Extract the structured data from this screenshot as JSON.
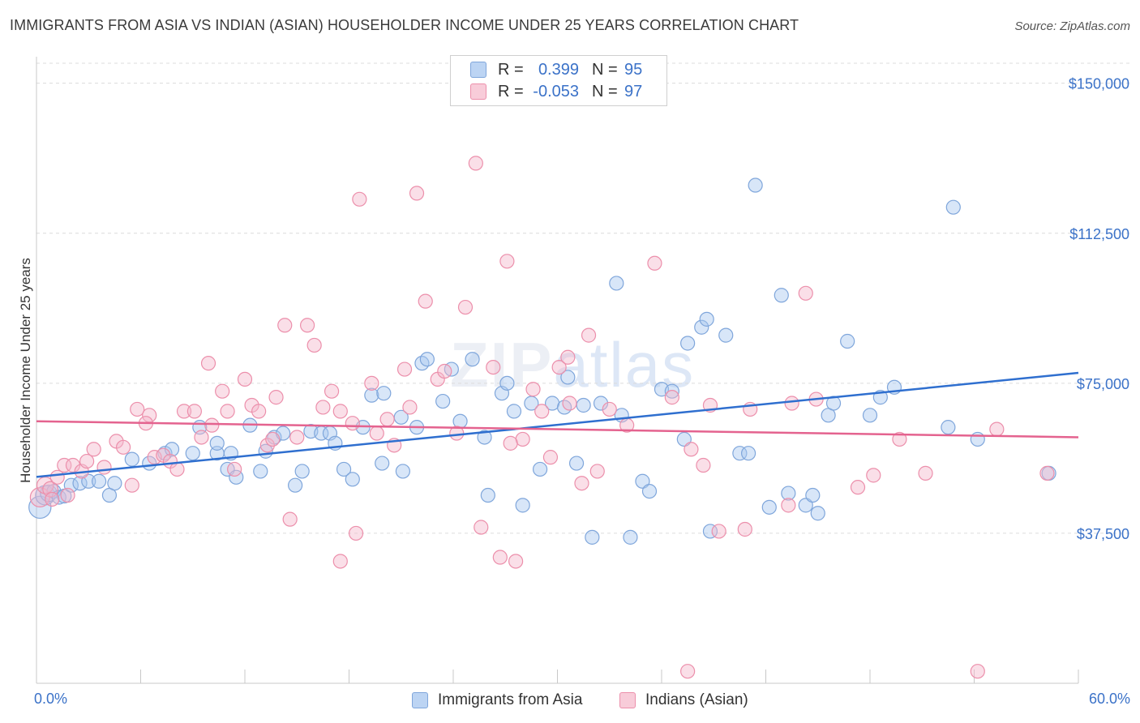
{
  "title": "IMMIGRANTS FROM ASIA VS INDIAN (ASIAN) HOUSEHOLDER INCOME UNDER 25 YEARS CORRELATION CHART",
  "source": "Source: ZipAtlas.com",
  "watermark": {
    "zip": "ZIP",
    "atlas": "atlas"
  },
  "legend": {
    "rows": [
      {
        "r_label": "R =",
        "r_value": "0.399",
        "n_label": "N =",
        "n_value": "95"
      },
      {
        "r_label": "R =",
        "r_value": "-0.053",
        "n_label": "N =",
        "n_value": "97"
      }
    ]
  },
  "colors": {
    "blue_fill": "#a9c7ef",
    "blue_stroke": "#7fa6db",
    "blue_line": "#2f6fcf",
    "pink_fill": "#f5b8cb",
    "pink_stroke": "#ec8fab",
    "pink_line": "#e4638f",
    "axis_text": "#3b72c8",
    "grid": "#dcdcdc"
  },
  "chart_data": {
    "type": "scatter",
    "title": "IMMIGRANTS FROM ASIA VS INDIAN (ASIAN) HOUSEHOLDER INCOME UNDER 25 YEARS CORRELATION CHART",
    "xlabel": "",
    "ylabel": "Householder Income Under 25 years",
    "xlim": [
      0,
      60
    ],
    "ylim": [
      0,
      155000
    ],
    "x_tick_labels": [
      "0.0%",
      "60.0%"
    ],
    "y_ticks": [
      37500,
      75000,
      112500,
      150000
    ],
    "y_tick_labels": [
      "$37,500",
      "$75,000",
      "$112,500",
      "$150,000"
    ],
    "grid": true,
    "legend_position": "top-center",
    "series": [
      {
        "name": "Immigrants from Asia",
        "r": 0.399,
        "n": 95,
        "trend": [
          [
            0,
            51600
          ],
          [
            60,
            77600
          ]
        ],
        "points": [
          [
            0.2,
            44000,
            1.6
          ],
          [
            0.5,
            47000,
            1.4
          ],
          [
            0.7,
            47500,
            1.2
          ],
          [
            1.0,
            48000,
            1.0
          ],
          [
            1.3,
            46500,
            1.0
          ],
          [
            1.6,
            46800,
            1.0
          ],
          [
            2.0,
            49500,
            1.0
          ],
          [
            2.5,
            50000,
            1.0
          ],
          [
            3.0,
            50500,
            1.0
          ],
          [
            3.6,
            50500,
            1.0
          ],
          [
            4.2,
            47000,
            1.0
          ],
          [
            4.5,
            50000,
            1.0
          ],
          [
            5.5,
            56000,
            1.0
          ],
          [
            6.5,
            55000,
            1.0
          ],
          [
            7.4,
            57500,
            1.0
          ],
          [
            7.8,
            58500,
            1.0
          ],
          [
            9.0,
            57500,
            1.0
          ],
          [
            9.4,
            64000,
            1.0
          ],
          [
            10.4,
            57500,
            1.0
          ],
          [
            10.4,
            60000,
            1.0
          ],
          [
            11.0,
            53500,
            1.0
          ],
          [
            11.2,
            57500,
            1.0
          ],
          [
            11.5,
            51500,
            1.0
          ],
          [
            12.3,
            64500,
            1.0
          ],
          [
            12.9,
            53000,
            1.0
          ],
          [
            13.2,
            58000,
            1.0
          ],
          [
            13.7,
            61500,
            1.0
          ],
          [
            14.2,
            62500,
            1.0
          ],
          [
            14.9,
            49500,
            1.0
          ],
          [
            15.3,
            53000,
            1.0
          ],
          [
            15.8,
            63000,
            1.0
          ],
          [
            16.4,
            62500,
            1.0
          ],
          [
            16.9,
            62500,
            1.0
          ],
          [
            17.2,
            60000,
            1.0
          ],
          [
            17.7,
            53500,
            1.0
          ],
          [
            18.2,
            51000,
            1.0
          ],
          [
            18.8,
            64000,
            1.0
          ],
          [
            19.3,
            72000,
            1.0
          ],
          [
            19.9,
            55000,
            1.0
          ],
          [
            20.0,
            72500,
            1.0
          ],
          [
            21.0,
            66500,
            1.0
          ],
          [
            21.1,
            53000,
            1.0
          ],
          [
            21.9,
            64000,
            1.0
          ],
          [
            22.2,
            80000,
            1.0
          ],
          [
            22.5,
            81000,
            1.0
          ],
          [
            23.4,
            70500,
            1.0
          ],
          [
            23.9,
            78500,
            1.0
          ],
          [
            24.4,
            65500,
            1.0
          ],
          [
            25.1,
            81000,
            1.0
          ],
          [
            25.8,
            61500,
            1.0
          ],
          [
            26.0,
            47000,
            1.0
          ],
          [
            26.8,
            72500,
            1.0
          ],
          [
            27.1,
            75000,
            1.0
          ],
          [
            27.5,
            68000,
            1.0
          ],
          [
            28.0,
            44500,
            1.0
          ],
          [
            28.5,
            70000,
            1.0
          ],
          [
            29.0,
            53500,
            1.0
          ],
          [
            29.7,
            70000,
            1.0
          ],
          [
            30.4,
            69000,
            1.0
          ],
          [
            30.6,
            76500,
            1.0
          ],
          [
            31.1,
            55000,
            1.0
          ],
          [
            31.5,
            69500,
            1.0
          ],
          [
            32.0,
            36500,
            1.0
          ],
          [
            32.5,
            70000,
            1.0
          ],
          [
            33.4,
            100000,
            1.0
          ],
          [
            33.7,
            67000,
            1.0
          ],
          [
            34.2,
            36500,
            1.0
          ],
          [
            34.9,
            50500,
            1.0
          ],
          [
            35.3,
            48000,
            1.0
          ],
          [
            36.0,
            73500,
            1.0
          ],
          [
            36.6,
            73000,
            1.0
          ],
          [
            37.3,
            61000,
            1.0
          ],
          [
            37.5,
            85000,
            1.0
          ],
          [
            38.3,
            89000,
            1.0
          ],
          [
            38.6,
            91000,
            1.0
          ],
          [
            38.8,
            38000,
            1.0
          ],
          [
            39.7,
            87000,
            1.0
          ],
          [
            40.5,
            57500,
            1.0
          ],
          [
            41.0,
            57500,
            1.0
          ],
          [
            41.4,
            124500,
            1.0
          ],
          [
            42.2,
            44000,
            1.0
          ],
          [
            42.9,
            97000,
            1.0
          ],
          [
            43.3,
            47500,
            1.0
          ],
          [
            44.3,
            44500,
            1.0
          ],
          [
            44.7,
            47000,
            1.0
          ],
          [
            45.0,
            42500,
            1.0
          ],
          [
            45.6,
            67000,
            1.0
          ],
          [
            45.9,
            70000,
            1.0
          ],
          [
            46.7,
            85500,
            1.0
          ],
          [
            48.0,
            67000,
            1.0
          ],
          [
            48.6,
            71500,
            1.0
          ],
          [
            49.4,
            74000,
            1.0
          ],
          [
            52.5,
            64000,
            1.0
          ],
          [
            52.8,
            119000,
            1.0
          ],
          [
            54.2,
            61000,
            1.0
          ],
          [
            58.3,
            52500,
            1.0
          ]
        ]
      },
      {
        "name": "Indians (Asian)",
        "r": -0.053,
        "n": 97,
        "trend": [
          [
            0,
            65500
          ],
          [
            60,
            61500
          ]
        ],
        "points": [
          [
            0.2,
            46500,
            1.4
          ],
          [
            0.5,
            49500,
            1.2
          ],
          [
            0.8,
            48500,
            1.1
          ],
          [
            1.2,
            51500,
            1.0
          ],
          [
            1.6,
            54500,
            1.0
          ],
          [
            2.1,
            54500,
            1.0
          ],
          [
            2.6,
            53000,
            1.0
          ],
          [
            2.9,
            55500,
            1.0
          ],
          [
            3.3,
            58500,
            1.0
          ],
          [
            3.9,
            54000,
            1.0
          ],
          [
            4.6,
            60500,
            1.0
          ],
          [
            5.0,
            59000,
            1.0
          ],
          [
            5.5,
            49500,
            1.0
          ],
          [
            5.8,
            68500,
            1.0
          ],
          [
            6.5,
            67000,
            1.0
          ],
          [
            6.8,
            56500,
            1.0
          ],
          [
            7.3,
            57000,
            1.0
          ],
          [
            7.7,
            55500,
            1.0
          ],
          [
            8.1,
            53500,
            1.0
          ],
          [
            8.5,
            68000,
            1.0
          ],
          [
            9.1,
            68000,
            1.0
          ],
          [
            9.5,
            61500,
            1.0
          ],
          [
            9.9,
            80000,
            1.0
          ],
          [
            10.1,
            64500,
            1.0
          ],
          [
            10.7,
            73000,
            1.0
          ],
          [
            11.0,
            68000,
            1.0
          ],
          [
            11.4,
            53500,
            1.0
          ],
          [
            12.0,
            76000,
            1.0
          ],
          [
            12.4,
            69500,
            1.0
          ],
          [
            12.8,
            68000,
            1.0
          ],
          [
            13.3,
            59500,
            1.0
          ],
          [
            13.8,
            71500,
            1.0
          ],
          [
            14.3,
            89500,
            1.0
          ],
          [
            14.6,
            41000,
            1.0
          ],
          [
            15.0,
            61500,
            1.0
          ],
          [
            15.6,
            89500,
            1.0
          ],
          [
            16.0,
            84500,
            1.0
          ],
          [
            16.5,
            69000,
            1.0
          ],
          [
            17.0,
            73000,
            1.0
          ],
          [
            17.5,
            68000,
            1.0
          ],
          [
            17.5,
            30500,
            1.0
          ],
          [
            18.2,
            65000,
            1.0
          ],
          [
            18.4,
            37500,
            1.0
          ],
          [
            18.6,
            121000,
            1.0
          ],
          [
            19.3,
            75000,
            1.0
          ],
          [
            19.6,
            62500,
            1.0
          ],
          [
            20.2,
            66000,
            1.0
          ],
          [
            20.6,
            59500,
            1.0
          ],
          [
            21.2,
            78500,
            1.0
          ],
          [
            21.5,
            69000,
            1.0
          ],
          [
            21.9,
            122500,
            1.0
          ],
          [
            22.4,
            95500,
            1.0
          ],
          [
            23.1,
            76000,
            1.0
          ],
          [
            23.5,
            78000,
            1.0
          ],
          [
            24.2,
            62500,
            1.0
          ],
          [
            24.7,
            94000,
            1.0
          ],
          [
            25.3,
            130000,
            1.0
          ],
          [
            25.6,
            39000,
            1.0
          ],
          [
            26.3,
            79000,
            1.0
          ],
          [
            26.7,
            31500,
            1.0
          ],
          [
            27.1,
            105500,
            1.0
          ],
          [
            27.6,
            30500,
            1.0
          ],
          [
            28.0,
            61000,
            1.0
          ],
          [
            28.6,
            73500,
            1.0
          ],
          [
            29.1,
            68000,
            1.0
          ],
          [
            29.6,
            56500,
            1.0
          ],
          [
            30.1,
            79000,
            1.0
          ],
          [
            30.6,
            81500,
            1.0
          ],
          [
            30.7,
            70000,
            1.0
          ],
          [
            31.4,
            50000,
            1.0
          ],
          [
            31.8,
            87000,
            1.0
          ],
          [
            32.3,
            53000,
            1.0
          ],
          [
            33.0,
            68500,
            1.0
          ],
          [
            34.0,
            64500,
            1.0
          ],
          [
            35.6,
            105000,
            1.0
          ],
          [
            36.6,
            71500,
            1.0
          ],
          [
            37.5,
            3000,
            1.0
          ],
          [
            37.7,
            58500,
            1.0
          ],
          [
            38.4,
            54500,
            1.0
          ],
          [
            38.8,
            69500,
            1.0
          ],
          [
            39.3,
            38000,
            1.0
          ],
          [
            40.8,
            38500,
            1.0
          ],
          [
            41.1,
            68500,
            1.0
          ],
          [
            43.3,
            44500,
            1.0
          ],
          [
            43.5,
            70000,
            1.0
          ],
          [
            44.3,
            97500,
            1.0
          ],
          [
            44.9,
            71000,
            1.0
          ],
          [
            47.3,
            49000,
            1.0
          ],
          [
            48.2,
            52000,
            1.0
          ],
          [
            49.7,
            61000,
            1.0
          ],
          [
            51.2,
            52500,
            1.0
          ],
          [
            54.2,
            3000,
            1.0
          ],
          [
            55.3,
            63500,
            1.0
          ],
          [
            58.2,
            52500,
            1.0
          ],
          [
            6.3,
            65000,
            1.0
          ],
          [
            13.6,
            61000,
            1.0
          ],
          [
            0.9,
            46000,
            1.0
          ],
          [
            1.8,
            47000,
            1.0
          ],
          [
            27.3,
            60000,
            1.0
          ]
        ]
      }
    ]
  }
}
